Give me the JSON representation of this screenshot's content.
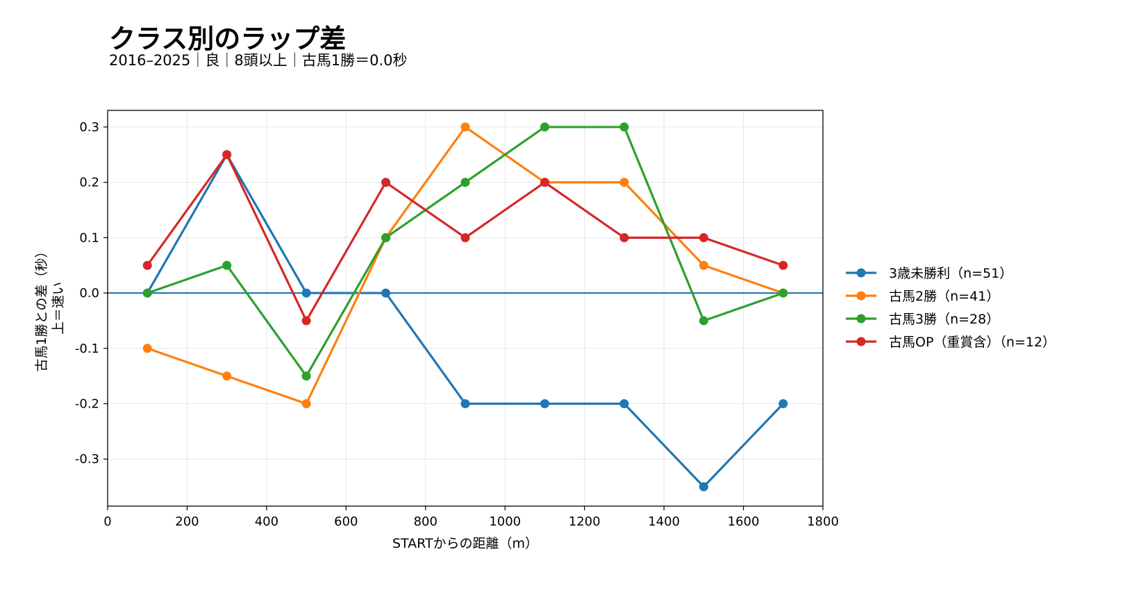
{
  "header": {
    "title": "クラス別のラップ差",
    "subtitle": "2016–2025｜良｜8頭以上｜古馬1勝＝0.0秒"
  },
  "chart_data": {
    "type": "line",
    "xlabel": "STARTからの距離（m）",
    "ylabel_line1": "古馬1勝との差（秒）",
    "ylabel_line2": "上＝速い",
    "xlim": [
      0,
      1800
    ],
    "ylim": [
      -0.385,
      0.33
    ],
    "x_ticks": [
      0,
      200,
      400,
      600,
      800,
      1000,
      1200,
      1400,
      1600,
      1800
    ],
    "y_ticks": [
      0.3,
      0.2,
      0.1,
      0.0,
      -0.1,
      -0.2,
      -0.3
    ],
    "y_tick_labels": [
      "0.3",
      "0.2",
      "0.1",
      "0.0",
      "-0.1",
      "-0.2",
      "-0.3"
    ],
    "grid": true,
    "reference_line": {
      "y": 0.0,
      "color": "#1f77b4"
    },
    "legend_position": "right",
    "x": [
      100,
      300,
      500,
      700,
      900,
      1100,
      1300,
      1500,
      1700
    ],
    "series": [
      {
        "name": "3歳未勝利（n=51）",
        "color": "#1f77b4",
        "values": [
          0.0,
          0.25,
          0.0,
          0.0,
          -0.2,
          -0.2,
          -0.2,
          -0.35,
          -0.2
        ]
      },
      {
        "name": "古馬2勝（n=41）",
        "color": "#ff7f0e",
        "values": [
          -0.1,
          -0.15,
          -0.2,
          0.1,
          0.3,
          0.2,
          0.2,
          0.05,
          0.0
        ]
      },
      {
        "name": "古馬3勝（n=28）",
        "color": "#2ca02c",
        "values": [
          0.0,
          0.05,
          -0.15,
          0.1,
          0.2,
          0.3,
          0.3,
          -0.05,
          0.0
        ]
      },
      {
        "name": "古馬OP（重賞含）（n=12）",
        "color": "#d62728",
        "values": [
          0.05,
          0.25,
          -0.05,
          0.2,
          0.1,
          0.2,
          0.1,
          0.1,
          0.05
        ]
      }
    ]
  }
}
